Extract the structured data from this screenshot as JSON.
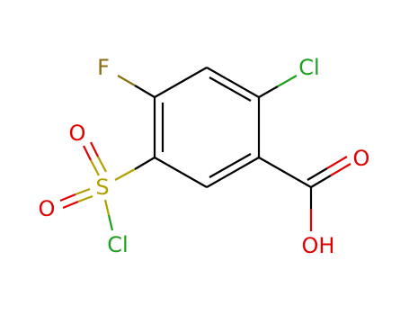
{
  "atoms": [
    {
      "label": "F"
    },
    {
      "label": "Cl"
    },
    {
      "label": "O"
    },
    {
      "label": "OH"
    },
    {
      "label": "S"
    },
    {
      "label": "O"
    },
    {
      "label": "O"
    },
    {
      "label": "Cl"
    }
  ]
}
